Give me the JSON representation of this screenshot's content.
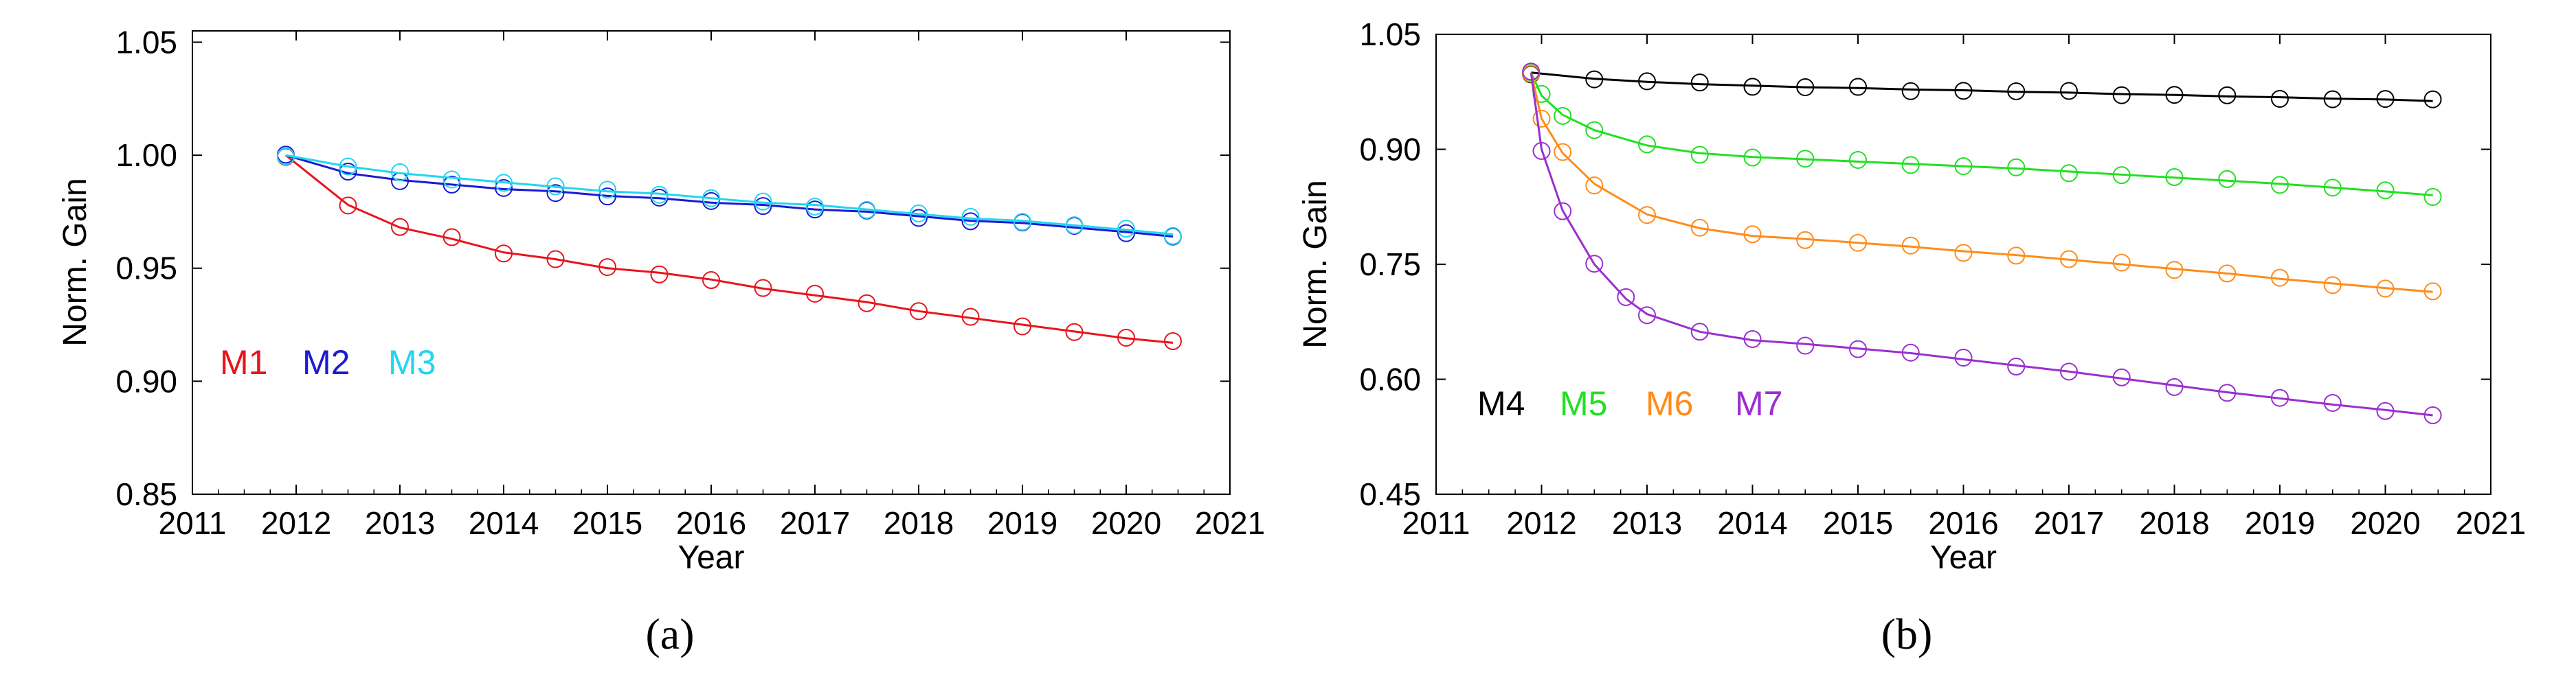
{
  "chart_data": [
    {
      "id": "a",
      "type": "scatter",
      "panel_label": "a",
      "panel_label_text": "(a)",
      "xlabel": "Year",
      "ylabel": "Norm. Gain",
      "xlim": [
        2011,
        2021
      ],
      "ylim": [
        0.85,
        1.055
      ],
      "xticks": [
        2011,
        2012,
        2013,
        2014,
        2015,
        2016,
        2017,
        2018,
        2019,
        2020,
        2021
      ],
      "yticks": [
        0.85,
        0.9,
        0.95,
        1.0,
        1.05
      ],
      "ytick_labels": [
        "0.85",
        "0.90",
        "0.95",
        "1.00",
        "1.05"
      ],
      "legend": [
        {
          "label": "M1",
          "color": "#e8141c"
        },
        {
          "label": "M2",
          "color": "#1a1ad6"
        },
        {
          "label": "M3",
          "color": "#22d6f0"
        }
      ],
      "series": [
        {
          "name": "M1",
          "color": "#e8141c",
          "x": [
            2011.9,
            2012.5,
            2013.0,
            2013.5,
            2014.0,
            2014.5,
            2015.0,
            2015.5,
            2016.0,
            2016.5,
            2017.0,
            2017.5,
            2018.0,
            2018.5,
            2019.0,
            2019.5,
            2020.0,
            2020.45
          ],
          "y": [
            1.0,
            0.978,
            0.968,
            0.963,
            0.957,
            0.954,
            0.95,
            0.948,
            0.945,
            0.941,
            0.938,
            0.935,
            0.931,
            0.928,
            0.925,
            0.922,
            0.919,
            0.917
          ]
        },
        {
          "name": "M2",
          "color": "#1a1ad6",
          "x": [
            2011.9,
            2012.5,
            2013.0,
            2013.5,
            2014.0,
            2014.5,
            2015.0,
            2015.5,
            2016.0,
            2016.5,
            2017.0,
            2017.5,
            2018.0,
            2018.5,
            2019.0,
            2019.5,
            2020.0,
            2020.45
          ],
          "y": [
            1.0,
            0.992,
            0.989,
            0.987,
            0.985,
            0.984,
            0.982,
            0.981,
            0.979,
            0.978,
            0.976,
            0.975,
            0.973,
            0.971,
            0.97,
            0.968,
            0.966,
            0.964
          ]
        },
        {
          "name": "M3",
          "color": "#22d6f0",
          "x": [
            2011.9,
            2012.5,
            2013.0,
            2013.5,
            2014.0,
            2014.5,
            2015.0,
            2015.5,
            2016.0,
            2016.5,
            2017.0,
            2017.5,
            2018.0,
            2018.5,
            2019.0,
            2019.5,
            2020.0,
            2020.45
          ],
          "y": [
            1.0,
            0.995,
            0.992,
            0.99,
            0.988,
            0.986,
            0.984,
            0.983,
            0.981,
            0.979,
            0.978,
            0.976,
            0.974,
            0.972,
            0.971,
            0.969,
            0.967,
            0.965
          ]
        }
      ]
    },
    {
      "id": "b",
      "type": "scatter",
      "panel_label": "b",
      "panel_label_text": "(b)",
      "xlabel": "Year",
      "ylabel": "Norm. Gain",
      "xlim": [
        2011,
        2021
      ],
      "ylim": [
        0.45,
        1.05
      ],
      "xticks": [
        2011,
        2012,
        2013,
        2014,
        2015,
        2016,
        2017,
        2018,
        2019,
        2020,
        2021
      ],
      "yticks": [
        0.45,
        0.6,
        0.75,
        0.9,
        1.05
      ],
      "ytick_labels": [
        "0.45",
        "0.60",
        "0.75",
        "0.90",
        "1.05"
      ],
      "legend": [
        {
          "label": "M4",
          "color": "#000000"
        },
        {
          "label": "M5",
          "color": "#22e022"
        },
        {
          "label": "M6",
          "color": "#ff8c1a"
        },
        {
          "label": "M7",
          "color": "#9a2fd0"
        }
      ],
      "series": [
        {
          "name": "M4",
          "color": "#000000",
          "x": [
            2011.9,
            2012.5,
            2013.0,
            2013.5,
            2014.0,
            2014.5,
            2015.0,
            2015.5,
            2016.0,
            2016.5,
            2017.0,
            2017.5,
            2018.0,
            2018.5,
            2019.0,
            2019.5,
            2020.0,
            2020.45
          ],
          "y": [
            1.0,
            0.992,
            0.988,
            0.985,
            0.983,
            0.981,
            0.98,
            0.978,
            0.977,
            0.975,
            0.974,
            0.972,
            0.971,
            0.969,
            0.968,
            0.966,
            0.965,
            0.963
          ]
        },
        {
          "name": "M5",
          "color": "#22e022",
          "x": [
            2011.9,
            2012.0,
            2012.2,
            2012.5,
            2013.0,
            2013.5,
            2014.0,
            2014.5,
            2015.0,
            2015.5,
            2016.0,
            2016.5,
            2017.0,
            2017.5,
            2018.0,
            2018.5,
            2019.0,
            2019.5,
            2020.0,
            2020.45
          ],
          "y": [
            1.0,
            0.97,
            0.945,
            0.925,
            0.905,
            0.895,
            0.89,
            0.887,
            0.884,
            0.881,
            0.878,
            0.875,
            0.871,
            0.867,
            0.863,
            0.859,
            0.855,
            0.85,
            0.845,
            0.84
          ]
        },
        {
          "name": "M6",
          "color": "#ff8c1a",
          "x": [
            2011.9,
            2012.0,
            2012.2,
            2012.5,
            2013.0,
            2013.5,
            2014.0,
            2014.5,
            2015.0,
            2015.5,
            2016.0,
            2016.5,
            2017.0,
            2017.5,
            2018.0,
            2018.5,
            2019.0,
            2019.5,
            2020.0,
            2020.45
          ],
          "y": [
            1.0,
            0.94,
            0.895,
            0.855,
            0.815,
            0.797,
            0.787,
            0.783,
            0.778,
            0.773,
            0.767,
            0.762,
            0.756,
            0.75,
            0.744,
            0.738,
            0.731,
            0.725,
            0.719,
            0.714
          ]
        },
        {
          "name": "M7",
          "color": "#9a2fd0",
          "x": [
            2011.9,
            2012.0,
            2012.2,
            2012.5,
            2012.8,
            2013.0,
            2013.5,
            2014.0,
            2014.5,
            2015.0,
            2015.5,
            2016.0,
            2016.5,
            2017.0,
            2017.5,
            2018.0,
            2018.5,
            2019.0,
            2019.5,
            2020.0,
            2020.45
          ],
          "y": [
            1.0,
            0.9,
            0.82,
            0.75,
            0.705,
            0.685,
            0.662,
            0.651,
            0.646,
            0.64,
            0.634,
            0.626,
            0.618,
            0.61,
            0.601,
            0.592,
            0.583,
            0.575,
            0.567,
            0.56,
            0.553
          ]
        }
      ]
    }
  ]
}
